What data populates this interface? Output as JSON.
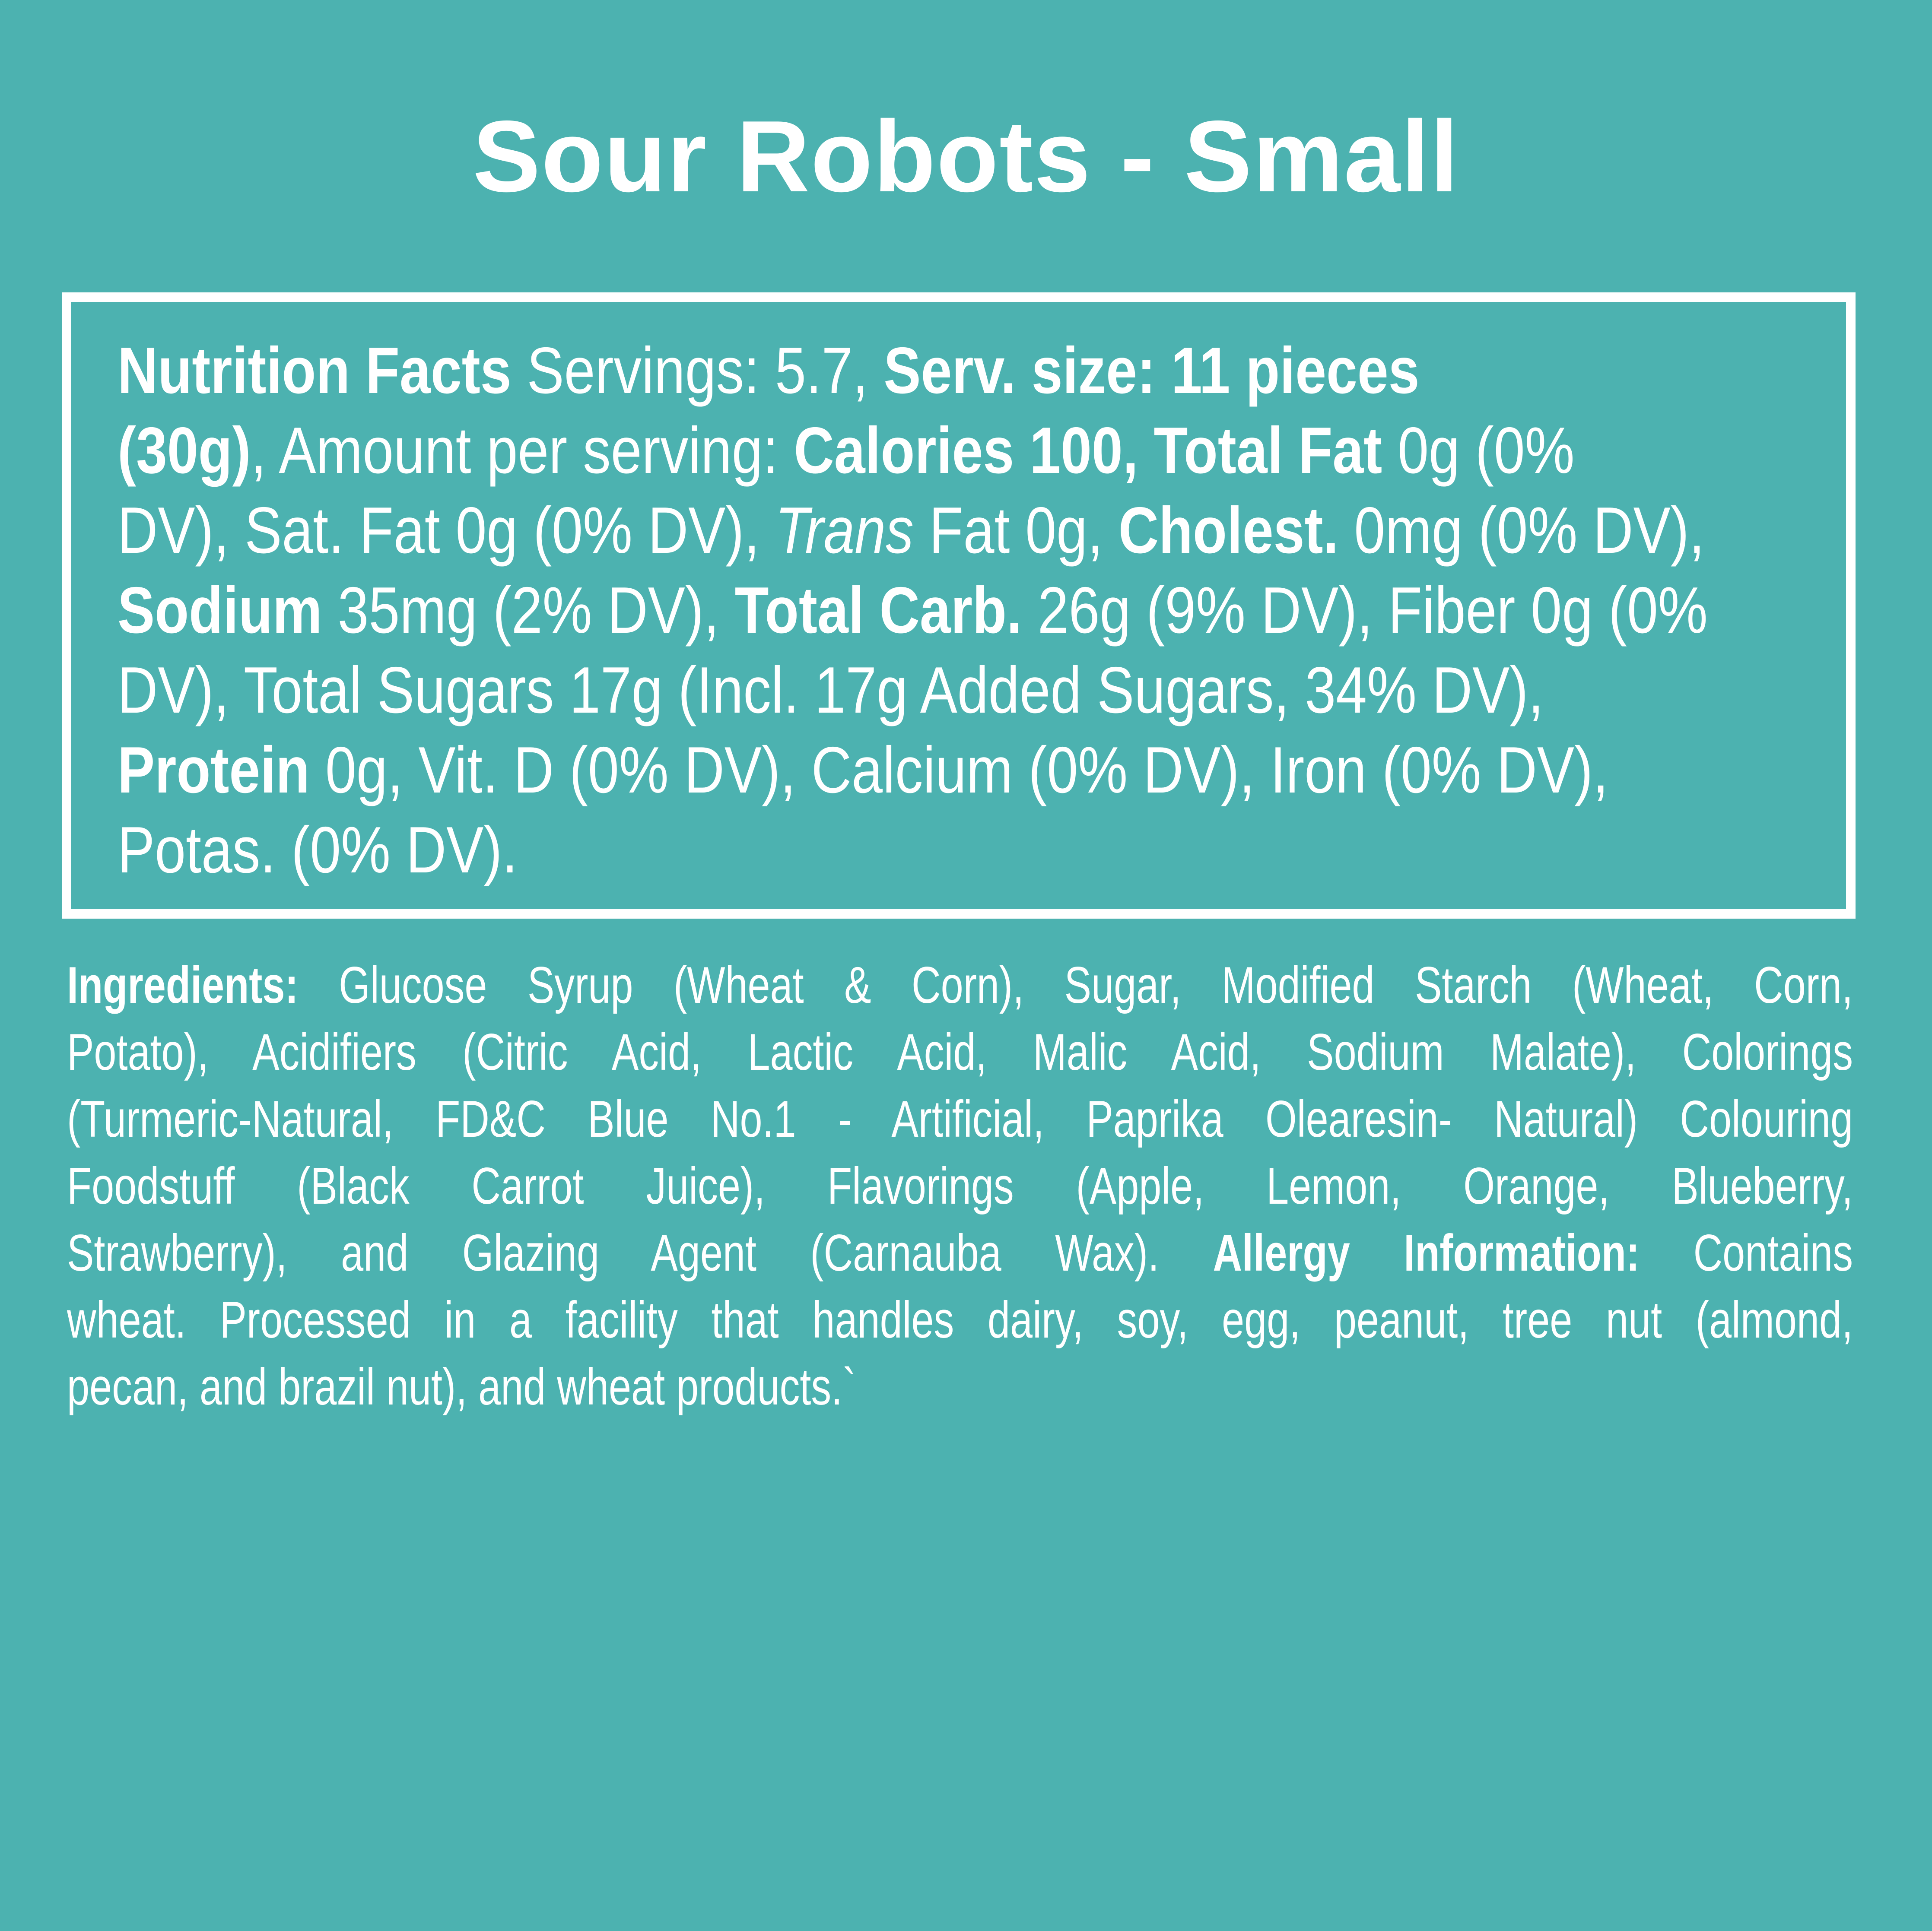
{
  "page": {
    "background_color": "#4cb2b0",
    "text_color": "#ffffff",
    "box_border_color": "#ffffff"
  },
  "title": "Sour Robots - Small",
  "nutrition_box": {
    "lines": [
      [
        {
          "t": "Nutrition Facts ",
          "b": true
        },
        {
          "t": "Servings: 5.7, "
        },
        {
          "t": "Serv. size: 11 pieces",
          "b": true
        }
      ],
      [
        {
          "t": "(30g)",
          "b": true
        },
        {
          "t": ", Amount per serving: "
        },
        {
          "t": "Calories 100, Total Fat",
          "b": true
        },
        {
          "t": " 0g (0%"
        }
      ],
      [
        {
          "t": "DV), Sat. Fat 0g (0% DV), "
        },
        {
          "t": "Trans",
          "i": true
        },
        {
          "t": " Fat 0g, "
        },
        {
          "t": "Cholest.",
          "b": true
        },
        {
          "t": " 0mg (0% DV),"
        }
      ],
      [
        {
          "t": "Sodium",
          "b": true
        },
        {
          "t": " 35mg (2% DV), "
        },
        {
          "t": "Total Carb.",
          "b": true
        },
        {
          "t": " 26g (9% DV), Fiber 0g (0%"
        }
      ],
      [
        {
          "t": "DV), Total Sugars 17g (Incl. 17g Added Sugars, 34% DV),"
        }
      ],
      [
        {
          "t": "Protein",
          "b": true
        },
        {
          "t": " 0g, Vit. D (0% DV), Calcium (0% DV), Iron (0% DV),"
        }
      ],
      [
        {
          "t": "Potas. (0% DV)."
        }
      ]
    ]
  },
  "ingredients": {
    "lines": [
      [
        {
          "t": "Ingredients:",
          "b": true
        },
        {
          "t": " Glucose Syrup (Wheat & Corn), Sugar, Modified Starch (Wheat, Corn,"
        }
      ],
      [
        {
          "t": "Potato), Acidifiers (Citric Acid, Lactic Acid, Malic Acid, Sodium Malate), Colorings"
        }
      ],
      [
        {
          "t": "(Turmeric-Natural, FD&C Blue No.1 - Artificial, Paprika Olearesin- Natural) Colouring"
        }
      ],
      [
        {
          "t": "Foodstuff (Black Carrot Juice), Flavorings (Apple, Lemon, Orange, Blueberry,"
        }
      ],
      [
        {
          "t": "Strawberry), and Glazing Agent (Carnauba Wax).  "
        },
        {
          "t": "Allergy Information:",
          "b": true
        },
        {
          "t": " Contains"
        }
      ],
      [
        {
          "t": "wheat. Processed in a facility that handles dairy, soy, egg, peanut, tree nut (almond,"
        }
      ],
      [
        {
          "t": "pecan, and brazil nut), and wheat products.`"
        }
      ]
    ]
  }
}
